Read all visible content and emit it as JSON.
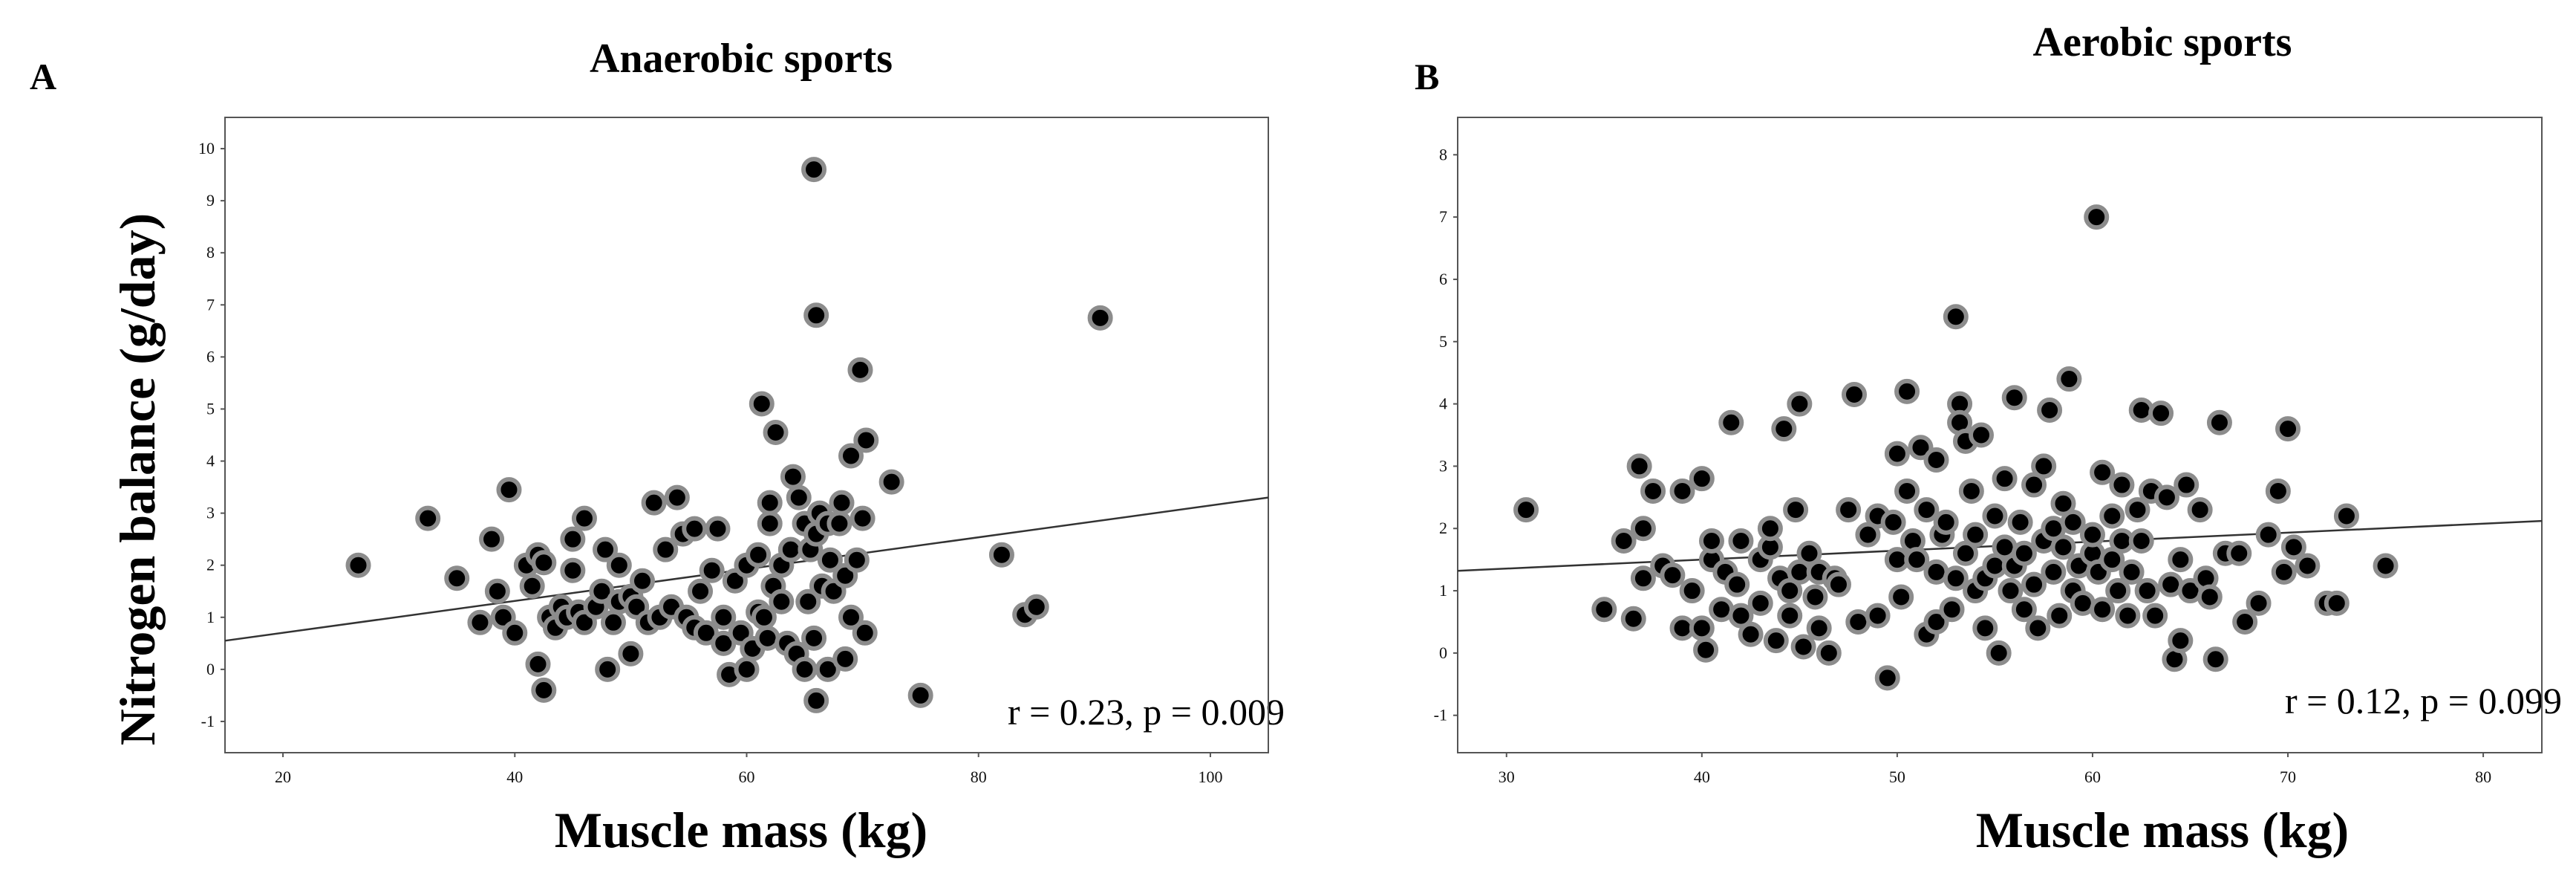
{
  "chart_data": [
    {
      "type": "scatter",
      "panel": "A",
      "title": "Anaerobic sports",
      "xlabel": "Muscle mass (kg)",
      "ylabel": "Nitrogen balance (g/day)",
      "xlim": [
        15,
        105
      ],
      "ylim": [
        -1.6,
        10.6
      ],
      "xticks": [
        20,
        40,
        60,
        80,
        100
      ],
      "yticks": [
        -1,
        0,
        1,
        2,
        3,
        4,
        5,
        6,
        7,
        8,
        9,
        10
      ],
      "annotation": "r = 0.23, p = 0.009",
      "fit_line": {
        "x": [
          15,
          105
        ],
        "y": [
          0.55,
          3.3
        ]
      },
      "points": [
        [
          26.5,
          2.0
        ],
        [
          32.5,
          2.9
        ],
        [
          35.0,
          1.75
        ],
        [
          37.0,
          0.9
        ],
        [
          38.0,
          2.5
        ],
        [
          38.5,
          1.5
        ],
        [
          39.0,
          1.0
        ],
        [
          39.5,
          3.45
        ],
        [
          40.0,
          0.7
        ],
        [
          41.0,
          2.0
        ],
        [
          41.5,
          1.6
        ],
        [
          42.0,
          2.2
        ],
        [
          42.0,
          0.1
        ],
        [
          42.5,
          -0.4
        ],
        [
          42.5,
          2.05
        ],
        [
          43.0,
          1.0
        ],
        [
          43.5,
          0.8
        ],
        [
          44.0,
          1.2
        ],
        [
          44.5,
          1.0
        ],
        [
          45.0,
          2.5
        ],
        [
          45.0,
          1.9
        ],
        [
          45.5,
          1.1
        ],
        [
          46.0,
          2.9
        ],
        [
          46.0,
          0.9
        ],
        [
          47.0,
          1.2
        ],
        [
          47.5,
          1.5
        ],
        [
          47.8,
          2.3
        ],
        [
          48.0,
          0.0
        ],
        [
          48.5,
          0.9
        ],
        [
          49.0,
          1.3
        ],
        [
          49.0,
          2.0
        ],
        [
          50.0,
          0.3
        ],
        [
          50.0,
          1.4
        ],
        [
          50.5,
          1.2
        ],
        [
          51.0,
          1.7
        ],
        [
          51.5,
          0.9
        ],
        [
          52.0,
          3.2
        ],
        [
          52.5,
          1.0
        ],
        [
          53.0,
          2.3
        ],
        [
          53.5,
          1.2
        ],
        [
          54.0,
          3.3
        ],
        [
          54.5,
          2.6
        ],
        [
          54.8,
          1.0
        ],
        [
          55.5,
          2.7
        ],
        [
          55.5,
          0.8
        ],
        [
          56.0,
          1.5
        ],
        [
          56.5,
          0.7
        ],
        [
          57.0,
          1.9
        ],
        [
          57.5,
          2.7
        ],
        [
          58.0,
          1.0
        ],
        [
          58.0,
          0.5
        ],
        [
          58.5,
          -0.1
        ],
        [
          59.0,
          1.7
        ],
        [
          59.5,
          0.7
        ],
        [
          60.0,
          2.0
        ],
        [
          60.0,
          0.0
        ],
        [
          60.5,
          0.4
        ],
        [
          61.0,
          1.1
        ],
        [
          61.0,
          2.2
        ],
        [
          61.3,
          5.1
        ],
        [
          61.5,
          1.0
        ],
        [
          61.8,
          0.6
        ],
        [
          62.0,
          3.2
        ],
        [
          62.0,
          2.8
        ],
        [
          62.3,
          1.6
        ],
        [
          62.5,
          4.55
        ],
        [
          63.0,
          2.0
        ],
        [
          63.0,
          1.3
        ],
        [
          63.5,
          0.5
        ],
        [
          63.8,
          2.3
        ],
        [
          64.0,
          3.7
        ],
        [
          64.3,
          0.3
        ],
        [
          64.5,
          3.3
        ],
        [
          65.0,
          0.0
        ],
        [
          65.0,
          2.8
        ],
        [
          65.3,
          1.3
        ],
        [
          65.5,
          2.3
        ],
        [
          65.8,
          9.6
        ],
        [
          65.8,
          0.6
        ],
        [
          66.0,
          6.8
        ],
        [
          66.0,
          -0.6
        ],
        [
          66.0,
          2.6
        ],
        [
          66.3,
          3.0
        ],
        [
          66.5,
          1.6
        ],
        [
          67.0,
          2.8
        ],
        [
          67.0,
          0.0
        ],
        [
          67.2,
          2.1
        ],
        [
          67.5,
          1.5
        ],
        [
          68.0,
          2.8
        ],
        [
          68.2,
          3.2
        ],
        [
          68.5,
          0.2
        ],
        [
          68.5,
          1.8
        ],
        [
          69.0,
          4.1
        ],
        [
          69.0,
          1.0
        ],
        [
          69.5,
          2.1
        ],
        [
          69.8,
          5.75
        ],
        [
          70.0,
          2.9
        ],
        [
          70.2,
          0.7
        ],
        [
          70.3,
          4.4
        ],
        [
          72.5,
          3.6
        ],
        [
          75.0,
          -0.5
        ],
        [
          82.0,
          2.2
        ],
        [
          84.0,
          1.05
        ],
        [
          85.0,
          1.2
        ],
        [
          90.5,
          6.75
        ]
      ]
    },
    {
      "type": "scatter",
      "panel": "B",
      "title": "Aerobic sports",
      "xlabel": "Muscle mass (kg)",
      "ylabel": "",
      "xlim": [
        27.5,
        83
      ],
      "ylim": [
        -1.6,
        8.6
      ],
      "xticks": [
        30,
        40,
        50,
        60,
        70,
        80
      ],
      "yticks": [
        -1,
        0,
        1,
        2,
        3,
        4,
        5,
        6,
        7,
        8
      ],
      "annotation": "r = 0.12, p = 0.099",
      "fit_line": {
        "x": [
          27.5,
          83
        ],
        "y": [
          1.32,
          2.12
        ]
      },
      "points": [
        [
          31.0,
          2.3
        ],
        [
          35.0,
          0.7
        ],
        [
          36.0,
          1.8
        ],
        [
          36.5,
          0.55
        ],
        [
          36.8,
          3.0
        ],
        [
          37.0,
          2.0
        ],
        [
          37.0,
          1.2
        ],
        [
          37.5,
          2.6
        ],
        [
          38.0,
          1.4
        ],
        [
          38.5,
          1.25
        ],
        [
          39.0,
          2.6
        ],
        [
          39.0,
          0.4
        ],
        [
          39.5,
          1.0
        ],
        [
          40.0,
          2.8
        ],
        [
          40.0,
          0.4
        ],
        [
          40.2,
          0.05
        ],
        [
          40.5,
          1.5
        ],
        [
          40.5,
          1.8
        ],
        [
          41.0,
          0.7
        ],
        [
          41.2,
          1.3
        ],
        [
          41.5,
          3.7
        ],
        [
          41.8,
          1.1
        ],
        [
          42.0,
          1.8
        ],
        [
          42.0,
          0.6
        ],
        [
          42.5,
          0.3
        ],
        [
          43.0,
          1.5
        ],
        [
          43.0,
          0.8
        ],
        [
          43.5,
          1.7
        ],
        [
          43.5,
          2.0
        ],
        [
          43.8,
          0.2
        ],
        [
          44.0,
          1.2
        ],
        [
          44.2,
          3.6
        ],
        [
          44.5,
          0.6
        ],
        [
          44.5,
          1.0
        ],
        [
          44.8,
          2.3
        ],
        [
          45.0,
          4.0
        ],
        [
          45.0,
          1.3
        ],
        [
          45.2,
          0.1
        ],
        [
          45.5,
          1.6
        ],
        [
          45.8,
          0.9
        ],
        [
          46.0,
          1.3
        ],
        [
          46.0,
          0.4
        ],
        [
          46.5,
          0.0
        ],
        [
          46.8,
          1.2
        ],
        [
          47.0,
          1.1
        ],
        [
          47.5,
          2.3
        ],
        [
          47.8,
          4.15
        ],
        [
          48.0,
          0.5
        ],
        [
          48.5,
          1.9
        ],
        [
          49.0,
          2.2
        ],
        [
          49.0,
          0.6
        ],
        [
          49.5,
          -0.4
        ],
        [
          49.8,
          2.1
        ],
        [
          50.0,
          3.2
        ],
        [
          50.0,
          1.5
        ],
        [
          50.2,
          0.9
        ],
        [
          50.5,
          4.2
        ],
        [
          50.5,
          2.6
        ],
        [
          50.8,
          1.8
        ],
        [
          51.0,
          1.5
        ],
        [
          51.2,
          3.3
        ],
        [
          51.5,
          0.3
        ],
        [
          51.5,
          2.3
        ],
        [
          52.0,
          1.3
        ],
        [
          52.0,
          3.1
        ],
        [
          52.0,
          0.5
        ],
        [
          52.3,
          1.9
        ],
        [
          52.5,
          2.1
        ],
        [
          52.8,
          0.7
        ],
        [
          53.0,
          1.2
        ],
        [
          53.0,
          5.4
        ],
        [
          53.2,
          4.0
        ],
        [
          53.2,
          3.7
        ],
        [
          53.5,
          3.4
        ],
        [
          53.5,
          1.6
        ],
        [
          53.8,
          2.6
        ],
        [
          54.0,
          1.0
        ],
        [
          54.0,
          1.9
        ],
        [
          54.3,
          3.5
        ],
        [
          54.5,
          1.2
        ],
        [
          54.5,
          0.4
        ],
        [
          55.0,
          2.2
        ],
        [
          55.0,
          1.4
        ],
        [
          55.2,
          0.0
        ],
        [
          55.5,
          2.8
        ],
        [
          55.5,
          1.7
        ],
        [
          55.8,
          1.0
        ],
        [
          56.0,
          4.1
        ],
        [
          56.0,
          1.4
        ],
        [
          56.3,
          2.1
        ],
        [
          56.5,
          1.6
        ],
        [
          56.5,
          0.7
        ],
        [
          57.0,
          2.7
        ],
        [
          57.0,
          1.1
        ],
        [
          57.2,
          0.4
        ],
        [
          57.5,
          3.0
        ],
        [
          57.5,
          1.8
        ],
        [
          57.8,
          3.9
        ],
        [
          58.0,
          2.0
        ],
        [
          58.0,
          1.3
        ],
        [
          58.3,
          0.6
        ],
        [
          58.5,
          2.4
        ],
        [
          58.5,
          1.7
        ],
        [
          58.8,
          4.4
        ],
        [
          59.0,
          1.0
        ],
        [
          59.0,
          2.1
        ],
        [
          59.3,
          1.4
        ],
        [
          59.5,
          0.8
        ],
        [
          60.0,
          1.6
        ],
        [
          60.0,
          1.9
        ],
        [
          60.2,
          7.0
        ],
        [
          60.3,
          1.3
        ],
        [
          60.5,
          2.9
        ],
        [
          60.5,
          0.7
        ],
        [
          61.0,
          2.2
        ],
        [
          61.0,
          1.5
        ],
        [
          61.3,
          1.0
        ],
        [
          61.5,
          2.7
        ],
        [
          61.5,
          1.8
        ],
        [
          61.8,
          0.6
        ],
        [
          62.0,
          1.3
        ],
        [
          62.3,
          2.3
        ],
        [
          62.5,
          3.9
        ],
        [
          62.5,
          1.8
        ],
        [
          62.8,
          1.0
        ],
        [
          63.0,
          2.6
        ],
        [
          63.2,
          0.6
        ],
        [
          63.5,
          3.85
        ],
        [
          63.8,
          2.5
        ],
        [
          64.0,
          1.1
        ],
        [
          64.2,
          -0.1
        ],
        [
          64.5,
          0.2
        ],
        [
          64.5,
          1.5
        ],
        [
          64.8,
          2.7
        ],
        [
          65.0,
          1.0
        ],
        [
          65.5,
          2.3
        ],
        [
          65.8,
          1.2
        ],
        [
          66.0,
          0.9
        ],
        [
          66.3,
          -0.1
        ],
        [
          66.5,
          3.7
        ],
        [
          66.8,
          1.6
        ],
        [
          67.5,
          1.6
        ],
        [
          67.8,
          0.5
        ],
        [
          68.5,
          0.8
        ],
        [
          69.0,
          1.9
        ],
        [
          69.5,
          2.6
        ],
        [
          69.8,
          1.3
        ],
        [
          70.0,
          3.6
        ],
        [
          70.3,
          1.7
        ],
        [
          71.0,
          1.4
        ],
        [
          72.0,
          0.8
        ],
        [
          72.5,
          0.8
        ],
        [
          73.0,
          2.2
        ],
        [
          75.0,
          1.4
        ]
      ]
    }
  ]
}
